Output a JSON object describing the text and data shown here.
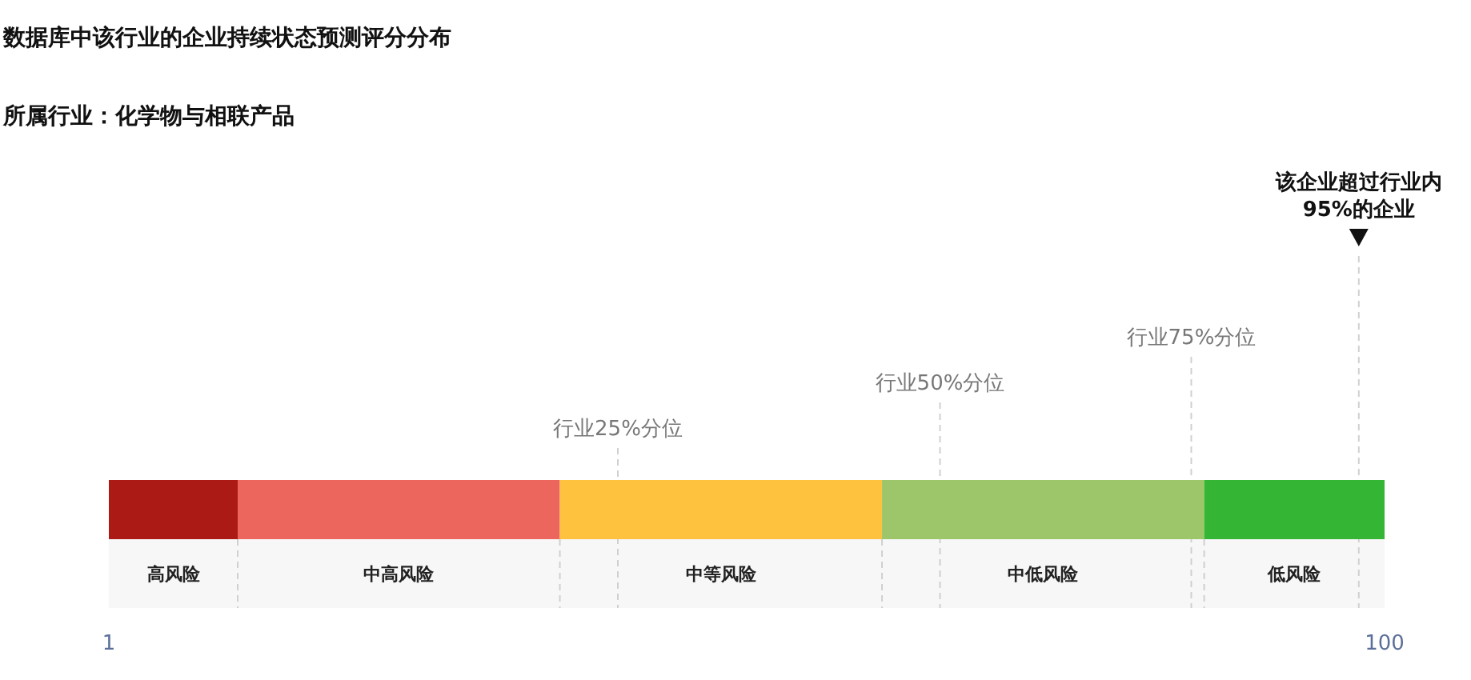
{
  "chart_data": {
    "type": "bar",
    "title": "数据库中该行业的企业持续状态预测评分分布",
    "subtitle": "所属行业：化学物与相联产品",
    "orientation": "horizontal",
    "categories": [
      null
    ],
    "bands": [
      {
        "axis": "x",
        "from": 1,
        "to": 11,
        "label": "高风险",
        "color": "#ab1a14"
      },
      {
        "axis": "x",
        "from": 11,
        "to": 36,
        "label": "中高风险",
        "color": "#ec665e"
      },
      {
        "axis": "x",
        "from": 36,
        "to": 61,
        "label": "中等风险",
        "color": "#ffc23e"
      },
      {
        "axis": "x",
        "from": 61,
        "to": 86,
        "label": "中低风险",
        "color": "#9dc66a"
      },
      {
        "axis": "x",
        "from": 86,
        "to": 100,
        "label": "低风险",
        "color": "#34b534"
      }
    ],
    "xlim": [
      1,
      100
    ],
    "xticks": [
      1,
      100
    ],
    "ref_lines": [
      {
        "axis": "x",
        "value": 40.5,
        "label": "行业25%分位"
      },
      {
        "axis": "x",
        "value": 65.5,
        "label": "行业50%分位"
      },
      {
        "axis": "x",
        "value": 85,
        "label": "行业75%分位"
      },
      {
        "axis": "x",
        "value": 98,
        "label": "该企业超过行业内95%的企业",
        "line_style": "marker"
      }
    ]
  }
}
